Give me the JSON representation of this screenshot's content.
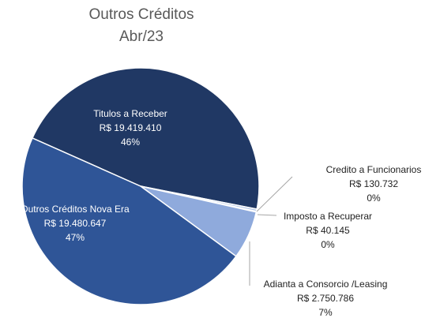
{
  "chart_data": {
    "type": "pie",
    "title": "Outros Créditos",
    "subtitle": "Abr/23",
    "categories": [
      "Titulos a Receber",
      "Credito a Funcionarios",
      "Imposto a Recuperar",
      "Adianta a Consorcio /Leasing",
      "Outros Créditos Nova Era"
    ],
    "values": [
      19419410,
      130732,
      40145,
      2750786,
      19480647
    ],
    "value_labels": [
      "R$ 19.419.410",
      "R$ 130.732",
      "R$ 40.145",
      "R$ 2.750.786",
      "R$ 19.480.647"
    ],
    "percentages": [
      46,
      0,
      0,
      7,
      47
    ],
    "percentage_labels": [
      "46%",
      "0%",
      "0%",
      "7%",
      "47%"
    ],
    "colors": [
      "#203864",
      "#b4c7e7",
      "#dae3f3",
      "#8faadc",
      "#2f5597"
    ]
  }
}
